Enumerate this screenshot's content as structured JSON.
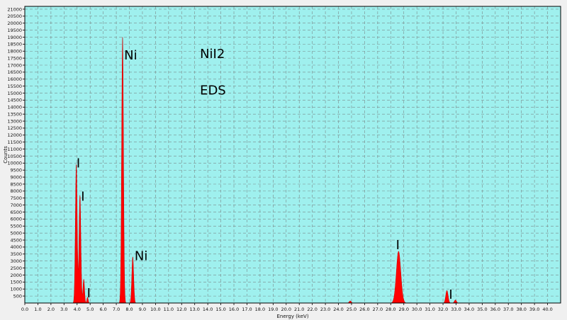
{
  "chart_data": {
    "type": "area",
    "title": "NiI2",
    "subtitle": "EDS",
    "xlabel": "Energy (keV)",
    "ylabel": "Counts",
    "xlim": [
      0,
      41
    ],
    "ylim": [
      0,
      21200
    ],
    "x_ticks": [
      0.0,
      1.0,
      2.0,
      3.0,
      4.0,
      5.0,
      6.0,
      7.0,
      8.0,
      9.0,
      10.0,
      11.0,
      12.0,
      13.0,
      14.0,
      15.0,
      16.0,
      17.0,
      18.0,
      19.0,
      20.0,
      21.0,
      22.0,
      23.0,
      24.0,
      25.0,
      26.0,
      27.0,
      28.0,
      29.0,
      30.0,
      31.0,
      32.0,
      33.0,
      34.0,
      35.0,
      36.0,
      37.0,
      38.0,
      39.0,
      40.0
    ],
    "y_ticks": [
      500,
      1000,
      1500,
      2000,
      2500,
      3000,
      3500,
      4000,
      4500,
      5000,
      5500,
      6000,
      6500,
      7000,
      7500,
      8000,
      8500,
      9000,
      9500,
      10000,
      10500,
      11000,
      11500,
      12000,
      12500,
      13000,
      13500,
      14000,
      14500,
      15000,
      15500,
      16000,
      16500,
      17000,
      17500,
      18000,
      18500,
      19000,
      19500,
      20000,
      20500,
      21000
    ],
    "grid": true,
    "fill_color": "#ff0000",
    "background_color": "#9ff0ee",
    "series": [
      {
        "peaks": [
          {
            "energy": 3.94,
            "counts": 9900,
            "width": 0.07
          },
          {
            "energy": 4.22,
            "counts": 7700,
            "width": 0.07
          },
          {
            "energy": 4.51,
            "counts": 1700,
            "width": 0.06
          },
          {
            "energy": 4.8,
            "counts": 420,
            "width": 0.05
          },
          {
            "energy": 7.48,
            "counts": 19000,
            "width": 0.07
          },
          {
            "energy": 8.26,
            "counts": 3300,
            "width": 0.07
          },
          {
            "energy": 24.9,
            "counts": 150,
            "width": 0.08
          },
          {
            "energy": 28.6,
            "counts": 3700,
            "width": 0.17
          },
          {
            "energy": 32.3,
            "counts": 900,
            "width": 0.09
          },
          {
            "energy": 32.95,
            "counts": 220,
            "width": 0.08
          }
        ]
      }
    ],
    "annotations": [
      {
        "text": "Ni",
        "x": 7.6,
        "y": 17400
      },
      {
        "text": "I",
        "x": 3.95,
        "y": 9700
      },
      {
        "text": "I",
        "x": 4.3,
        "y": 7300
      },
      {
        "text": "I",
        "x": 4.75,
        "y": 400
      },
      {
        "text": "Ni",
        "x": 8.4,
        "y": 3050
      },
      {
        "text": "I",
        "x": 28.4,
        "y": 3850
      },
      {
        "text": "I",
        "x": 32.45,
        "y": 300
      },
      {
        "text": "NiI2",
        "x": 13.4,
        "y": 17500
      },
      {
        "text": "EDS",
        "x": 13.4,
        "y": 14900
      }
    ]
  }
}
